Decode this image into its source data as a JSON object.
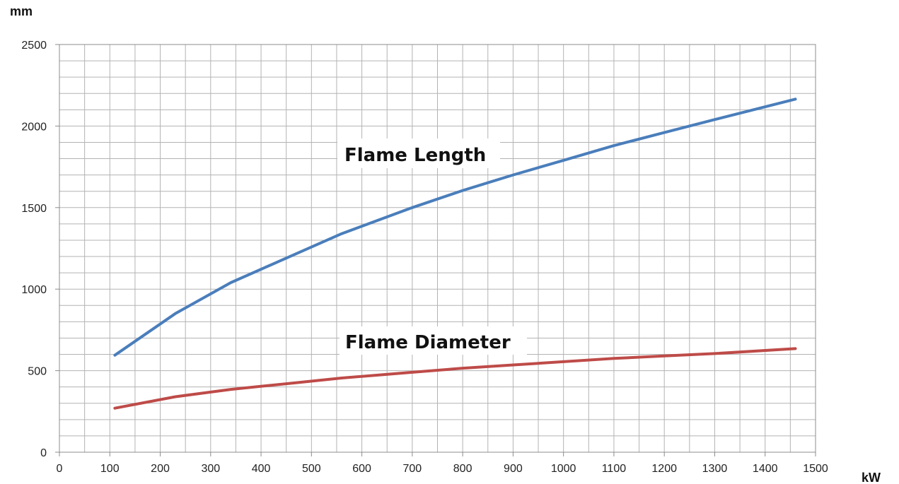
{
  "chart_data": {
    "type": "line",
    "ylabel": "mm",
    "xlabel": "kW",
    "xlim": [
      0,
      1500
    ],
    "ylim": [
      0,
      2500
    ],
    "x_ticks": [
      0,
      100,
      200,
      300,
      400,
      500,
      600,
      700,
      800,
      900,
      1000,
      1100,
      1200,
      1300,
      1400,
      1500
    ],
    "y_ticks": [
      0,
      500,
      1000,
      1500,
      2000,
      2500
    ],
    "grid": true,
    "series": [
      {
        "name": "Flame Length",
        "color": "#4a7ebb",
        "points": [
          [
            110,
            595
          ],
          [
            230,
            850
          ],
          [
            340,
            1040
          ],
          [
            450,
            1190
          ],
          [
            560,
            1340
          ],
          [
            700,
            1500
          ],
          [
            800,
            1605
          ],
          [
            900,
            1700
          ],
          [
            1000,
            1790
          ],
          [
            1100,
            1880
          ],
          [
            1200,
            1960
          ],
          [
            1300,
            2040
          ],
          [
            1460,
            2165
          ]
        ]
      },
      {
        "name": "Flame Diameter",
        "color": "#be4b48",
        "points": [
          [
            110,
            270
          ],
          [
            230,
            340
          ],
          [
            340,
            385
          ],
          [
            450,
            420
          ],
          [
            560,
            455
          ],
          [
            700,
            490
          ],
          [
            800,
            515
          ],
          [
            900,
            535
          ],
          [
            1000,
            555
          ],
          [
            1100,
            575
          ],
          [
            1200,
            590
          ],
          [
            1300,
            605
          ],
          [
            1460,
            635
          ]
        ]
      }
    ]
  }
}
